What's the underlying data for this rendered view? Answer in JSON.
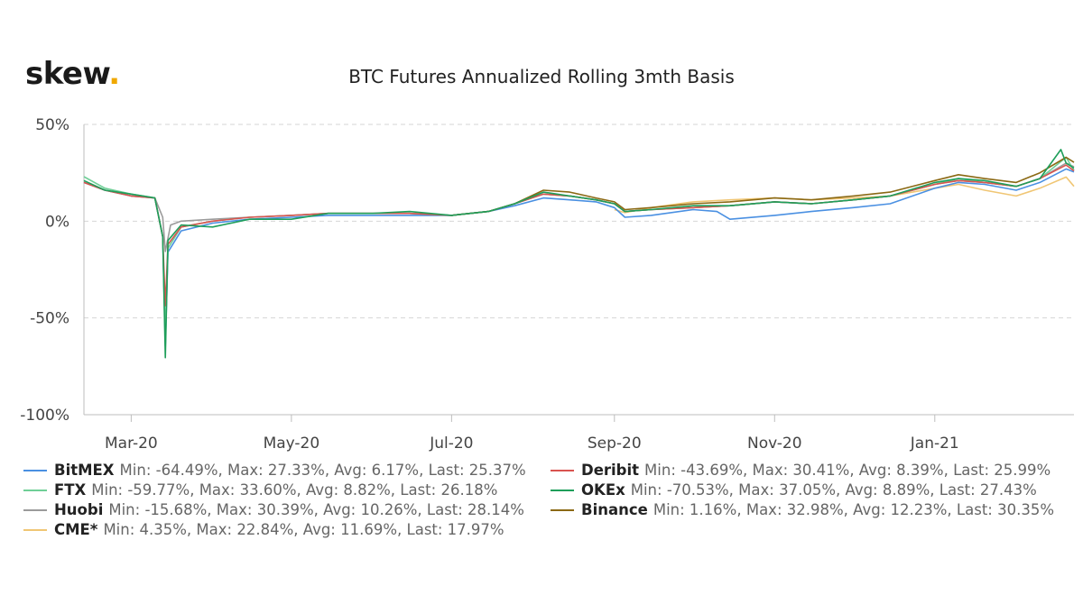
{
  "brand": {
    "logo_text": "skew",
    "logo_dot": "."
  },
  "chart_data": {
    "type": "line",
    "title": "BTC Futures Annualized Rolling 3mth Basis",
    "xlabel": "",
    "ylabel": "",
    "x_range": [
      "2020-02-12",
      "2021-02-23"
    ],
    "ylim": [
      -100,
      50
    ],
    "y_ticks": [
      50,
      0,
      -50,
      -100
    ],
    "y_tick_labels": [
      "50%",
      "0%",
      "-50%",
      "-100%"
    ],
    "x_ticks": [
      "2020-03-01",
      "2020-05-01",
      "2020-07-01",
      "2020-09-01",
      "2020-11-01",
      "2021-01-01"
    ],
    "x_tick_labels": [
      "Mar-20",
      "May-20",
      "Jul-20",
      "Sep-20",
      "Nov-20",
      "Jan-21"
    ],
    "grid": "horizontal dashed",
    "legend_position": "bottom",
    "series": [
      {
        "name": "BitMEX",
        "color": "#4a90e2",
        "stats": "Min: -64.49%, Max: 27.33%, Avg: 6.17%, Last: 25.37%",
        "points": [
          [
            "2020-02-12",
            20
          ],
          [
            "2020-02-20",
            16
          ],
          [
            "2020-03-01",
            13
          ],
          [
            "2020-03-10",
            12
          ],
          [
            "2020-03-13",
            -8
          ],
          [
            "2020-03-14",
            -64.5
          ],
          [
            "2020-03-15",
            -16
          ],
          [
            "2020-03-20",
            -5
          ],
          [
            "2020-04-01",
            -1
          ],
          [
            "2020-04-15",
            1
          ],
          [
            "2020-05-01",
            2
          ],
          [
            "2020-05-15",
            3
          ],
          [
            "2020-06-01",
            3
          ],
          [
            "2020-06-15",
            3
          ],
          [
            "2020-07-01",
            3
          ],
          [
            "2020-07-15",
            5
          ],
          [
            "2020-07-25",
            8
          ],
          [
            "2020-08-05",
            12
          ],
          [
            "2020-08-15",
            11
          ],
          [
            "2020-08-25",
            10
          ],
          [
            "2020-09-01",
            7
          ],
          [
            "2020-09-05",
            2
          ],
          [
            "2020-09-15",
            3
          ],
          [
            "2020-10-01",
            6
          ],
          [
            "2020-10-10",
            5
          ],
          [
            "2020-10-15",
            1
          ],
          [
            "2020-11-01",
            3
          ],
          [
            "2020-11-15",
            5
          ],
          [
            "2020-12-01",
            7
          ],
          [
            "2020-12-15",
            9
          ],
          [
            "2021-01-01",
            17
          ],
          [
            "2021-01-10",
            20
          ],
          [
            "2021-01-20",
            19
          ],
          [
            "2021-02-01",
            16
          ],
          [
            "2021-02-10",
            20
          ],
          [
            "2021-02-20",
            27
          ],
          [
            "2021-02-23",
            25.4
          ]
        ]
      },
      {
        "name": "Deribit",
        "color": "#d9534f",
        "stats": "Min: -43.69%, Max: 30.41%, Avg: 8.39%, Last: 25.99%",
        "points": [
          [
            "2020-02-12",
            20
          ],
          [
            "2020-02-20",
            16
          ],
          [
            "2020-03-01",
            13
          ],
          [
            "2020-03-10",
            12
          ],
          [
            "2020-03-13",
            -8
          ],
          [
            "2020-03-14",
            -43.7
          ],
          [
            "2020-03-15",
            -12
          ],
          [
            "2020-03-20",
            -3
          ],
          [
            "2020-04-01",
            0
          ],
          [
            "2020-04-15",
            2
          ],
          [
            "2020-05-01",
            3
          ],
          [
            "2020-05-15",
            4
          ],
          [
            "2020-06-01",
            4
          ],
          [
            "2020-06-15",
            4
          ],
          [
            "2020-07-01",
            3
          ],
          [
            "2020-07-15",
            5
          ],
          [
            "2020-07-25",
            9
          ],
          [
            "2020-08-05",
            14
          ],
          [
            "2020-08-15",
            13
          ],
          [
            "2020-08-25",
            11
          ],
          [
            "2020-09-01",
            9
          ],
          [
            "2020-09-05",
            5
          ],
          [
            "2020-09-15",
            6
          ],
          [
            "2020-10-01",
            7
          ],
          [
            "2020-10-15",
            8
          ],
          [
            "2020-11-01",
            10
          ],
          [
            "2020-11-15",
            9
          ],
          [
            "2020-12-01",
            11
          ],
          [
            "2020-12-15",
            13
          ],
          [
            "2021-01-01",
            19
          ],
          [
            "2021-01-10",
            21
          ],
          [
            "2021-01-20",
            20
          ],
          [
            "2021-02-01",
            18
          ],
          [
            "2021-02-10",
            22
          ],
          [
            "2021-02-20",
            29
          ],
          [
            "2021-02-23",
            26
          ]
        ]
      },
      {
        "name": "FTX",
        "color": "#6fcf97",
        "stats": "Min: -59.77%, Max: 33.60%, Avg: 8.82%, Last: 26.18%",
        "points": [
          [
            "2020-02-12",
            23
          ],
          [
            "2020-02-20",
            17
          ],
          [
            "2020-03-01",
            14
          ],
          [
            "2020-03-10",
            12
          ],
          [
            "2020-03-13",
            -8
          ],
          [
            "2020-03-14",
            -59.8
          ],
          [
            "2020-03-15",
            -14
          ],
          [
            "2020-03-20",
            -3
          ],
          [
            "2020-04-01",
            0
          ],
          [
            "2020-04-15",
            2
          ],
          [
            "2020-05-01",
            3
          ],
          [
            "2020-05-15",
            4
          ],
          [
            "2020-06-01",
            4
          ],
          [
            "2020-06-15",
            4
          ],
          [
            "2020-07-01",
            3
          ],
          [
            "2020-07-15",
            5
          ],
          [
            "2020-07-25",
            9
          ],
          [
            "2020-08-05",
            14
          ],
          [
            "2020-08-15",
            13
          ],
          [
            "2020-08-25",
            11
          ],
          [
            "2020-09-01",
            9
          ],
          [
            "2020-09-05",
            5
          ],
          [
            "2020-09-15",
            6
          ],
          [
            "2020-10-01",
            7
          ],
          [
            "2020-10-15",
            8
          ],
          [
            "2020-11-01",
            10
          ],
          [
            "2020-11-15",
            9
          ],
          [
            "2020-12-01",
            11
          ],
          [
            "2020-12-15",
            13
          ],
          [
            "2021-01-01",
            19
          ],
          [
            "2021-01-10",
            22
          ],
          [
            "2021-01-20",
            20
          ],
          [
            "2021-02-01",
            18
          ],
          [
            "2021-02-10",
            22
          ],
          [
            "2021-02-20",
            33
          ],
          [
            "2021-02-23",
            26.2
          ]
        ]
      },
      {
        "name": "OKEx",
        "color": "#1e9e5a",
        "stats": "Min: -70.53%, Max: 37.05%, Avg: 8.89%, Last: 27.43%",
        "points": [
          [
            "2020-02-12",
            21
          ],
          [
            "2020-02-20",
            16
          ],
          [
            "2020-03-01",
            14
          ],
          [
            "2020-03-10",
            12
          ],
          [
            "2020-03-13",
            -8
          ],
          [
            "2020-03-14",
            -70.5
          ],
          [
            "2020-03-15",
            -10
          ],
          [
            "2020-03-20",
            -2
          ],
          [
            "2020-04-01",
            -3
          ],
          [
            "2020-04-15",
            1
          ],
          [
            "2020-05-01",
            1
          ],
          [
            "2020-05-15",
            4
          ],
          [
            "2020-06-01",
            4
          ],
          [
            "2020-06-15",
            5
          ],
          [
            "2020-07-01",
            3
          ],
          [
            "2020-07-15",
            5
          ],
          [
            "2020-07-25",
            9
          ],
          [
            "2020-08-05",
            15
          ],
          [
            "2020-08-15",
            13
          ],
          [
            "2020-08-25",
            11
          ],
          [
            "2020-09-01",
            9
          ],
          [
            "2020-09-05",
            5
          ],
          [
            "2020-09-15",
            6
          ],
          [
            "2020-10-01",
            8
          ],
          [
            "2020-10-15",
            8
          ],
          [
            "2020-11-01",
            10
          ],
          [
            "2020-11-15",
            9
          ],
          [
            "2020-12-01",
            11
          ],
          [
            "2020-12-15",
            13
          ],
          [
            "2021-01-01",
            20
          ],
          [
            "2021-01-10",
            22
          ],
          [
            "2021-01-20",
            21
          ],
          [
            "2021-02-01",
            18
          ],
          [
            "2021-02-10",
            22
          ],
          [
            "2021-02-18",
            37
          ],
          [
            "2021-02-20",
            30
          ],
          [
            "2021-02-23",
            27.4
          ]
        ]
      },
      {
        "name": "Huobi",
        "color": "#9b9b9b",
        "stats": "Min: -15.68%, Max: 30.39%, Avg: 10.26%, Last: 28.14%",
        "points": [
          [
            "2020-02-12",
            20
          ],
          [
            "2020-02-20",
            16
          ],
          [
            "2020-03-01",
            13
          ],
          [
            "2020-03-10",
            12
          ],
          [
            "2020-03-13",
            2
          ],
          [
            "2020-03-14",
            -15.7
          ],
          [
            "2020-03-16",
            -2
          ],
          [
            "2020-03-20",
            0
          ],
          [
            "2020-04-01",
            1
          ],
          [
            "2020-04-15",
            2
          ],
          [
            "2020-05-01",
            3
          ],
          [
            "2020-05-15",
            4
          ],
          [
            "2020-06-01",
            4
          ],
          [
            "2020-06-15",
            4
          ],
          [
            "2020-07-01",
            3
          ],
          [
            "2020-07-15",
            5
          ],
          [
            "2020-07-25",
            9
          ],
          [
            "2020-08-05",
            14
          ],
          [
            "2020-08-15",
            13
          ],
          [
            "2020-08-25",
            11
          ],
          [
            "2020-09-01",
            9
          ],
          [
            "2020-09-05",
            5
          ],
          [
            "2020-09-15",
            6
          ],
          [
            "2020-10-01",
            7
          ],
          [
            "2020-10-15",
            8
          ],
          [
            "2020-11-01",
            10
          ],
          [
            "2020-11-15",
            9
          ],
          [
            "2020-12-01",
            11
          ],
          [
            "2020-12-15",
            13
          ],
          [
            "2021-01-01",
            19
          ],
          [
            "2021-01-10",
            21
          ],
          [
            "2021-01-20",
            20
          ],
          [
            "2021-02-01",
            18
          ],
          [
            "2021-02-10",
            22
          ],
          [
            "2021-02-20",
            30
          ],
          [
            "2021-02-23",
            28.1
          ]
        ]
      },
      {
        "name": "Binance",
        "color": "#8b6914",
        "stats": "Min: 1.16%, Max: 32.98%, Avg: 12.23%, Last: 30.35%",
        "points": [
          [
            "2020-07-01",
            3
          ],
          [
            "2020-07-15",
            5
          ],
          [
            "2020-07-25",
            9
          ],
          [
            "2020-08-05",
            16
          ],
          [
            "2020-08-15",
            15
          ],
          [
            "2020-08-25",
            12
          ],
          [
            "2020-09-01",
            10
          ],
          [
            "2020-09-05",
            6
          ],
          [
            "2020-09-15",
            7
          ],
          [
            "2020-10-01",
            9
          ],
          [
            "2020-10-15",
            10
          ],
          [
            "2020-11-01",
            12
          ],
          [
            "2020-11-15",
            11
          ],
          [
            "2020-12-01",
            13
          ],
          [
            "2020-12-15",
            15
          ],
          [
            "2021-01-01",
            21
          ],
          [
            "2021-01-10",
            24
          ],
          [
            "2021-01-20",
            22
          ],
          [
            "2021-02-01",
            20
          ],
          [
            "2021-02-10",
            25
          ],
          [
            "2021-02-20",
            33
          ],
          [
            "2021-02-23",
            30.4
          ]
        ]
      },
      {
        "name": "CME*",
        "color": "#f0c674",
        "stats": "Min: 4.35%, Max: 22.84%, Avg: 11.69%, Last: 17.97%",
        "points": [
          [
            "2020-09-01",
            6
          ],
          [
            "2020-09-05",
            4.4
          ],
          [
            "2020-09-15",
            7
          ],
          [
            "2020-10-01",
            10
          ],
          [
            "2020-10-15",
            11
          ],
          [
            "2020-11-01",
            12
          ],
          [
            "2020-11-15",
            11
          ],
          [
            "2020-12-01",
            12
          ],
          [
            "2020-12-15",
            13
          ],
          [
            "2021-01-01",
            17
          ],
          [
            "2021-01-10",
            19
          ],
          [
            "2021-01-20",
            16
          ],
          [
            "2021-02-01",
            13
          ],
          [
            "2021-02-10",
            17
          ],
          [
            "2021-02-20",
            22.8
          ],
          [
            "2021-02-23",
            18
          ]
        ]
      }
    ]
  }
}
